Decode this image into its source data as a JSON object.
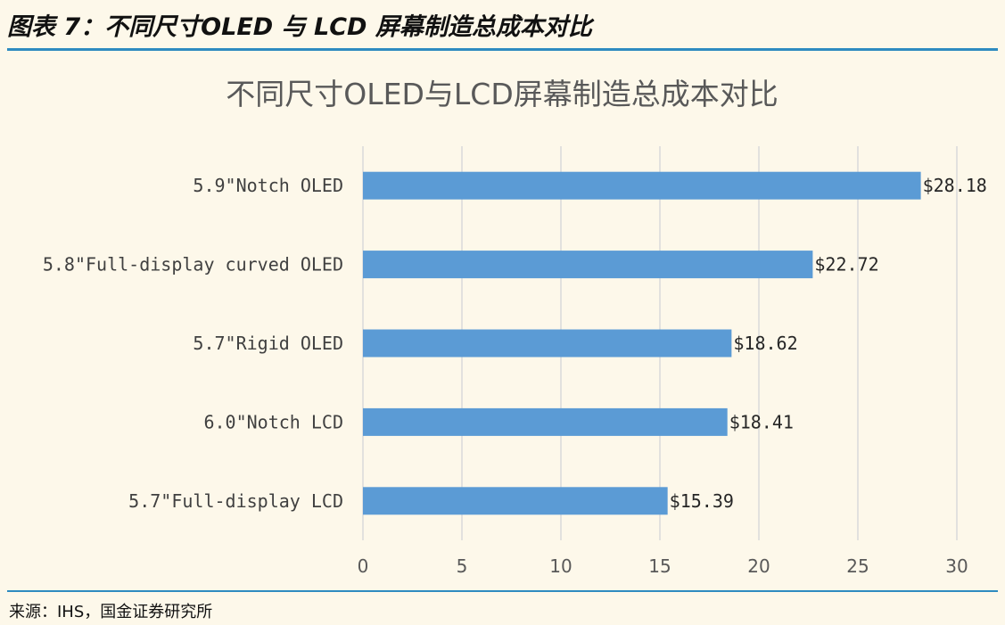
{
  "figure": {
    "caption": "图表 7：不同尺寸OLED 与 LCD 屏幕制造总成本对比",
    "source": "来源：IHS，国金证券研究所"
  },
  "colors": {
    "bar": "#5b9bd5",
    "grid": "#d9d9d9",
    "rule": "#2e8bc0",
    "background": "#fdf8ea"
  },
  "chart_data": {
    "type": "bar",
    "orientation": "horizontal",
    "title": "不同尺寸OLED与LCD屏幕制造总成本对比",
    "categories": [
      "5.9\"Notch OLED",
      "5.8\"Full-display curved OLED",
      "5.7\"Rigid OLED",
      "6.0\"Notch LCD",
      "5.7\"Full-display LCD"
    ],
    "values": [
      28.18,
      22.72,
      18.62,
      18.41,
      15.39
    ],
    "data_labels": [
      "$28.18",
      "$22.72",
      "$18.62",
      "$18.41",
      "$15.39"
    ],
    "xlim": [
      0,
      30
    ],
    "xticks": [
      0,
      5,
      10,
      15,
      20,
      25,
      30
    ],
    "grid": "vertical",
    "legend": "none"
  }
}
